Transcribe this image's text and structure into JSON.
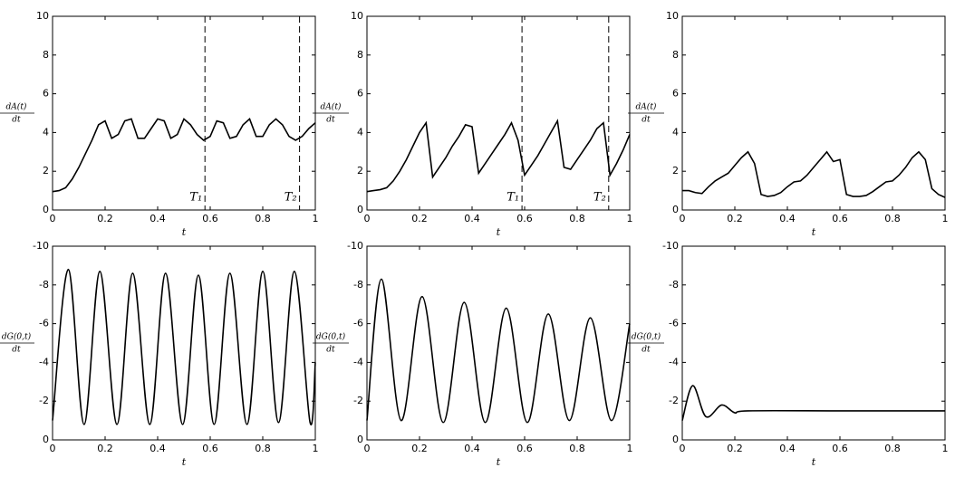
{
  "chart_data": [
    {
      "type": "line",
      "xlabel": "t",
      "ylabel": [
        "dA(t)",
        "dt"
      ],
      "xlim": [
        0,
        1
      ],
      "ylim": [
        0,
        10
      ],
      "xticks": [
        0,
        0.2,
        0.4,
        0.6,
        0.8,
        1
      ],
      "yticks": [
        0,
        2,
        4,
        6,
        8,
        10
      ],
      "color": "#000000",
      "smooth": false,
      "x": [
        0,
        0.025,
        0.05,
        0.075,
        0.1,
        0.125,
        0.15,
        0.175,
        0.2,
        0.225,
        0.25,
        0.275,
        0.3,
        0.325,
        0.35,
        0.375,
        0.4,
        0.425,
        0.45,
        0.475,
        0.5,
        0.525,
        0.55,
        0.575,
        0.6,
        0.625,
        0.65,
        0.675,
        0.7,
        0.725,
        0.75,
        0.775,
        0.8,
        0.825,
        0.85,
        0.875,
        0.9,
        0.925,
        0.95,
        0.975,
        1
      ],
      "values": [
        0.95,
        1.0,
        1.15,
        1.6,
        2.2,
        2.9,
        3.6,
        4.4,
        4.6,
        3.7,
        3.9,
        4.6,
        4.7,
        3.7,
        3.7,
        4.2,
        4.7,
        4.6,
        3.7,
        3.9,
        4.7,
        4.4,
        3.9,
        3.6,
        3.8,
        4.6,
        4.5,
        3.7,
        3.8,
        4.4,
        4.7,
        3.8,
        3.8,
        4.4,
        4.7,
        4.4,
        3.8,
        3.6,
        3.8,
        4.2,
        4.5
      ],
      "annotations": [
        {
          "text": "T₁",
          "x": 0.58
        },
        {
          "text": "T₂",
          "x": 0.94
        }
      ]
    },
    {
      "type": "line",
      "xlabel": "t",
      "ylabel": [
        "dA(t)",
        "dt"
      ],
      "xlim": [
        0,
        1
      ],
      "ylim": [
        0,
        10
      ],
      "xticks": [
        0,
        0.2,
        0.4,
        0.6,
        0.8,
        1
      ],
      "yticks": [
        0,
        2,
        4,
        6,
        8,
        10
      ],
      "color": "#000000",
      "smooth": false,
      "x": [
        0,
        0.025,
        0.05,
        0.075,
        0.1,
        0.125,
        0.15,
        0.175,
        0.2,
        0.225,
        0.25,
        0.275,
        0.3,
        0.325,
        0.35,
        0.375,
        0.4,
        0.425,
        0.45,
        0.475,
        0.5,
        0.525,
        0.55,
        0.575,
        0.6,
        0.625,
        0.65,
        0.675,
        0.7,
        0.725,
        0.75,
        0.775,
        0.8,
        0.825,
        0.85,
        0.875,
        0.9,
        0.925,
        0.95,
        0.975,
        1
      ],
      "values": [
        0.95,
        1.0,
        1.05,
        1.15,
        1.5,
        2.0,
        2.6,
        3.3,
        4.0,
        4.5,
        1.7,
        2.2,
        2.7,
        3.3,
        3.8,
        4.4,
        4.3,
        1.9,
        2.4,
        2.9,
        3.4,
        3.9,
        4.5,
        3.6,
        1.8,
        2.3,
        2.8,
        3.4,
        4.0,
        4.6,
        2.2,
        2.1,
        2.6,
        3.1,
        3.6,
        4.2,
        4.5,
        1.8,
        2.4,
        3.1,
        3.9
      ],
      "annotations": [
        {
          "text": "T₁",
          "x": 0.59
        },
        {
          "text": "T₂",
          "x": 0.92
        }
      ]
    },
    {
      "type": "line",
      "xlabel": "t",
      "ylabel": [
        "dA(t)",
        "dt"
      ],
      "xlim": [
        0,
        1
      ],
      "ylim": [
        0,
        10
      ],
      "xticks": [
        0,
        0.2,
        0.4,
        0.6,
        0.8,
        1
      ],
      "yticks": [
        0,
        2,
        4,
        6,
        8,
        10
      ],
      "color": "#000000",
      "smooth": false,
      "x": [
        0,
        0.025,
        0.05,
        0.075,
        0.1,
        0.125,
        0.15,
        0.175,
        0.2,
        0.225,
        0.25,
        0.275,
        0.3,
        0.325,
        0.35,
        0.375,
        0.4,
        0.425,
        0.45,
        0.475,
        0.5,
        0.525,
        0.55,
        0.575,
        0.6,
        0.625,
        0.65,
        0.675,
        0.7,
        0.725,
        0.75,
        0.775,
        0.8,
        0.825,
        0.85,
        0.875,
        0.9,
        0.925,
        0.95,
        0.975,
        1
      ],
      "values": [
        1.0,
        1.0,
        0.9,
        0.85,
        1.2,
        1.5,
        1.7,
        1.9,
        2.3,
        2.7,
        3.0,
        2.4,
        0.8,
        0.7,
        0.75,
        0.9,
        1.2,
        1.45,
        1.5,
        1.8,
        2.2,
        2.6,
        3.0,
        2.5,
        2.6,
        0.8,
        0.7,
        0.7,
        0.75,
        0.95,
        1.2,
        1.45,
        1.5,
        1.8,
        2.2,
        2.7,
        3.0,
        2.6,
        1.1,
        0.8,
        0.65
      ]
    },
    {
      "type": "line",
      "xlabel": "t",
      "ylabel": [
        "dG(0,t)",
        "dt"
      ],
      "xlim": [
        0,
        1
      ],
      "ylim": [
        0,
        -10
      ],
      "xticks": [
        0,
        0.2,
        0.4,
        0.6,
        0.8,
        1
      ],
      "yticks": [
        0,
        -2,
        -4,
        -6,
        -8,
        -10
      ],
      "color": "#000000",
      "smooth": true,
      "x": [
        0,
        0.06,
        0.12,
        0.18,
        0.245,
        0.305,
        0.37,
        0.43,
        0.495,
        0.555,
        0.615,
        0.675,
        0.74,
        0.8,
        0.86,
        0.92,
        0.98,
        1
      ],
      "values": [
        -1.0,
        -8.8,
        -0.8,
        -8.7,
        -0.8,
        -8.6,
        -0.8,
        -8.6,
        -0.8,
        -8.5,
        -0.8,
        -8.6,
        -0.8,
        -8.7,
        -0.9,
        -8.7,
        -0.9,
        -4.0
      ]
    },
    {
      "type": "line",
      "xlabel": "t",
      "ylabel": [
        "dG(0,t)",
        "dt"
      ],
      "xlim": [
        0,
        1
      ],
      "ylim": [
        0,
        -10
      ],
      "xticks": [
        0,
        0.2,
        0.4,
        0.6,
        0.8,
        1
      ],
      "yticks": [
        0,
        -2,
        -4,
        -6,
        -8,
        -10
      ],
      "color": "#000000",
      "smooth": true,
      "x": [
        0,
        0.055,
        0.13,
        0.21,
        0.29,
        0.37,
        0.45,
        0.53,
        0.61,
        0.69,
        0.77,
        0.85,
        0.93,
        1
      ],
      "values": [
        -1.0,
        -8.3,
        -1.0,
        -7.4,
        -0.9,
        -7.1,
        -0.9,
        -6.8,
        -0.9,
        -6.5,
        -1.0,
        -6.3,
        -1.0,
        -6.0
      ]
    },
    {
      "type": "line",
      "xlabel": "t",
      "ylabel": [
        "dG(0,t)",
        "dt"
      ],
      "xlim": [
        0,
        1
      ],
      "ylim": [
        0,
        -10
      ],
      "xticks": [
        0,
        0.2,
        0.4,
        0.6,
        0.8,
        1
      ],
      "yticks": [
        0,
        -2,
        -4,
        -6,
        -8,
        -10
      ],
      "color": "#000000",
      "smooth": true,
      "x": [
        0,
        0.04,
        0.09,
        0.15,
        0.2,
        0.25,
        0.6,
        1
      ],
      "values": [
        -1.0,
        -2.8,
        -1.2,
        -1.8,
        -1.4,
        -1.5,
        -1.5,
        -1.5
      ]
    }
  ]
}
